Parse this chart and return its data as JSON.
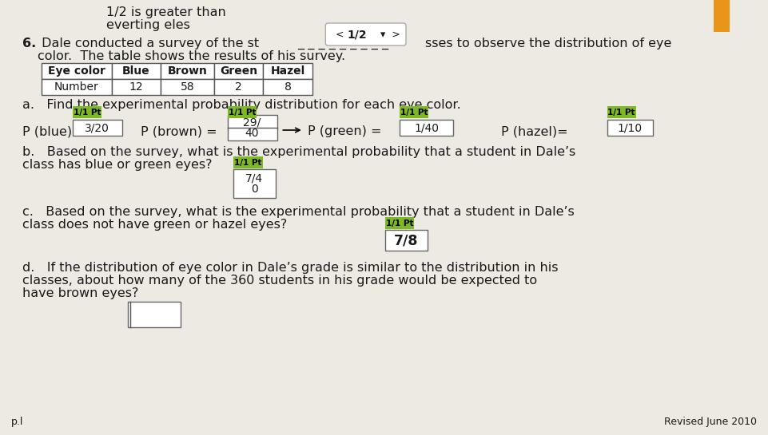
{
  "bg_color": "#ede9e3",
  "top_text_line1": "1/2 is greater than",
  "top_text_line2": "everting eles",
  "nav_text": "1/2",
  "q6_bold": "6.",
  "question_text1": " Dale conducted a survey of the st",
  "question_text2": "sses to observe the distribution of eye",
  "question_text3": "color.  The table shows the results of his survey.",
  "table_headers": [
    "Eye color",
    "Blue",
    "Brown",
    "Green",
    "Hazel"
  ],
  "table_row": [
    "Number",
    "12",
    "58",
    "2",
    "8"
  ],
  "part_a_text": "a.   Find the experimental probability distribution for each eye color.",
  "label_green_bg": "#7db825",
  "answer_blue_label": "3/20",
  "answer_green_label": "1/40",
  "answer_hazel_label": "1/10",
  "p_blue_text": "P (blue) =",
  "p_brown_text": "P (brown) =",
  "p_green_text": "P (green) =",
  "p_hazel_text": "P (hazel)=",
  "part_b_text1": "b.   Based on the survey, what is the experimental probability that a student in Dale’s",
  "part_b_text2": "class has blue or green eyes?",
  "part_c_text1": "c.   Based on the survey, what is the experimental probability that a student in Dale’s",
  "part_c_text2": "class does not have green or hazel eyes?",
  "answer_c": "7/8",
  "part_d_text1": "d.   If the distribution of eye color in Dale’s grade is similar to the distribution in his",
  "part_d_text2": "classes, about how many of the 360 students in his grade would be expected to",
  "part_d_text3": "have brown eyes?",
  "footer_left": "p.l",
  "footer_right": "Revised June 2010",
  "orange_rect": "#e8951a"
}
